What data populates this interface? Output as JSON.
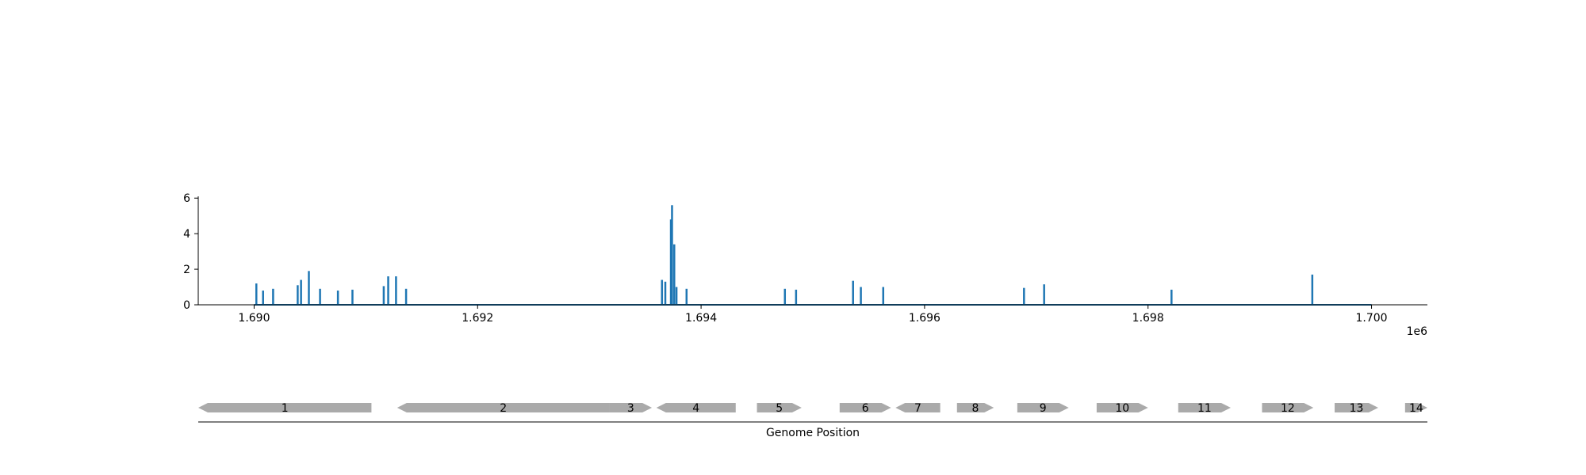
{
  "chart_data": [
    {
      "type": "line",
      "title": "",
      "xlabel": "",
      "ylabel": "",
      "x_offset_label": "1e6",
      "xlim": [
        1689500,
        1700500
      ],
      "ylim": [
        0,
        6.1
      ],
      "x_ticks": [
        1690000,
        1692000,
        1694000,
        1696000,
        1698000,
        1700000
      ],
      "x_tick_labels": [
        "1.690",
        "1.692",
        "1.694",
        "1.696",
        "1.698",
        "1.700"
      ],
      "y_ticks": [
        0,
        2,
        4,
        6
      ],
      "y_tick_labels": [
        "0",
        "2",
        "4",
        "6"
      ],
      "color": "#1f77b4",
      "baseline_range": [
        1690000,
        1700000
      ],
      "peaks": [
        {
          "x": 1690020,
          "y": 1.2
        },
        {
          "x": 1690080,
          "y": 0.8
        },
        {
          "x": 1690170,
          "y": 0.9
        },
        {
          "x": 1690390,
          "y": 1.1
        },
        {
          "x": 1690420,
          "y": 1.4
        },
        {
          "x": 1690490,
          "y": 1.9
        },
        {
          "x": 1690590,
          "y": 0.9
        },
        {
          "x": 1690750,
          "y": 0.8
        },
        {
          "x": 1690880,
          "y": 0.85
        },
        {
          "x": 1691160,
          "y": 1.05
        },
        {
          "x": 1691200,
          "y": 1.6
        },
        {
          "x": 1691270,
          "y": 1.6
        },
        {
          "x": 1691360,
          "y": 0.9
        },
        {
          "x": 1693650,
          "y": 1.4
        },
        {
          "x": 1693680,
          "y": 1.3
        },
        {
          "x": 1693730,
          "y": 4.8
        },
        {
          "x": 1693740,
          "y": 5.6
        },
        {
          "x": 1693760,
          "y": 3.4
        },
        {
          "x": 1693780,
          "y": 1.0
        },
        {
          "x": 1693870,
          "y": 0.9
        },
        {
          "x": 1694750,
          "y": 0.9
        },
        {
          "x": 1694850,
          "y": 0.85
        },
        {
          "x": 1695360,
          "y": 1.35
        },
        {
          "x": 1695430,
          "y": 1.0
        },
        {
          "x": 1695630,
          "y": 1.0
        },
        {
          "x": 1696890,
          "y": 0.95
        },
        {
          "x": 1697070,
          "y": 1.15
        },
        {
          "x": 1698210,
          "y": 0.85
        },
        {
          "x": 1699470,
          "y": 1.7
        }
      ]
    },
    {
      "type": "gene-track",
      "xlabel": "Genome Position",
      "xlim": [
        1689500,
        1700500
      ],
      "color": "#aaaaaa",
      "genes": [
        {
          "label": "1",
          "start": 1689500,
          "end": 1691050,
          "strand": "-"
        },
        {
          "label": "2",
          "start": 1691280,
          "end": 1693180,
          "strand": "-"
        },
        {
          "label": "3",
          "start": 1693180,
          "end": 1693560,
          "strand": "+"
        },
        {
          "label": "4",
          "start": 1693600,
          "end": 1694310,
          "strand": "-"
        },
        {
          "label": "5",
          "start": 1694500,
          "end": 1694900,
          "strand": "+"
        },
        {
          "label": "6",
          "start": 1695240,
          "end": 1695700,
          "strand": "+"
        },
        {
          "label": "7",
          "start": 1695740,
          "end": 1696140,
          "strand": "-"
        },
        {
          "label": "8",
          "start": 1696290,
          "end": 1696620,
          "strand": "+"
        },
        {
          "label": "9",
          "start": 1696830,
          "end": 1697290,
          "strand": "+"
        },
        {
          "label": "10",
          "start": 1697540,
          "end": 1698000,
          "strand": "+"
        },
        {
          "label": "11",
          "start": 1698270,
          "end": 1698740,
          "strand": "+"
        },
        {
          "label": "12",
          "start": 1699020,
          "end": 1699480,
          "strand": "+"
        },
        {
          "label": "13",
          "start": 1699670,
          "end": 1700060,
          "strand": "+"
        },
        {
          "label": "14",
          "start": 1700300,
          "end": 1700500,
          "strand": "+"
        }
      ]
    }
  ]
}
